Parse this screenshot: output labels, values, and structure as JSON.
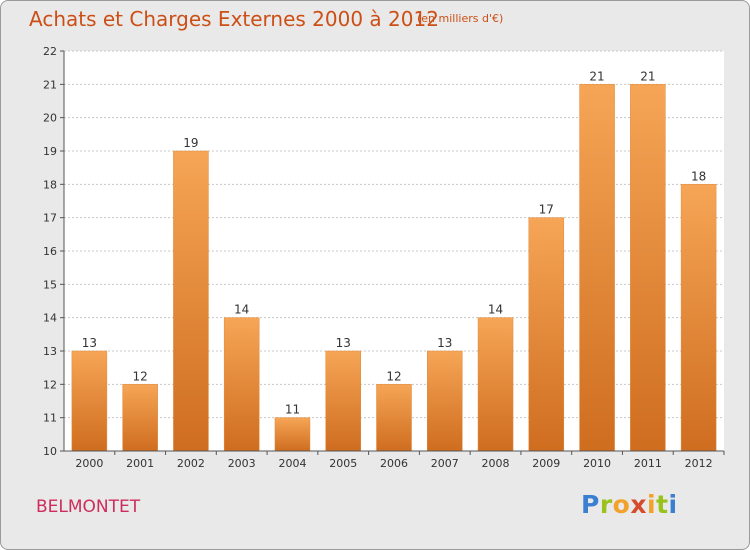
{
  "header": {
    "title": "Achats et Charges Externes 2000 à 2012",
    "unit": "(en milliers d'€)"
  },
  "footer": {
    "commune": "BELMONTET",
    "logo": "Proxiti"
  },
  "colors": {
    "bar_top": "#f6a556",
    "bar_bottom": "#cf6d1f",
    "title": "#cc4f16",
    "commune": "#cc2d5d"
  },
  "chart_data": {
    "type": "bar",
    "title": "Achats et Charges Externes 2000 à 2012",
    "categories": [
      "2000",
      "2001",
      "2002",
      "2003",
      "2004",
      "2005",
      "2006",
      "2007",
      "2008",
      "2009",
      "2010",
      "2011",
      "2012"
    ],
    "values": [
      13,
      12,
      19,
      14,
      11,
      13,
      12,
      13,
      14,
      17,
      21,
      21,
      18
    ],
    "ylim": [
      10,
      22
    ],
    "yticks": [
      10,
      11,
      12,
      13,
      14,
      15,
      16,
      17,
      18,
      19,
      20,
      21,
      22
    ],
    "grid": true
  }
}
